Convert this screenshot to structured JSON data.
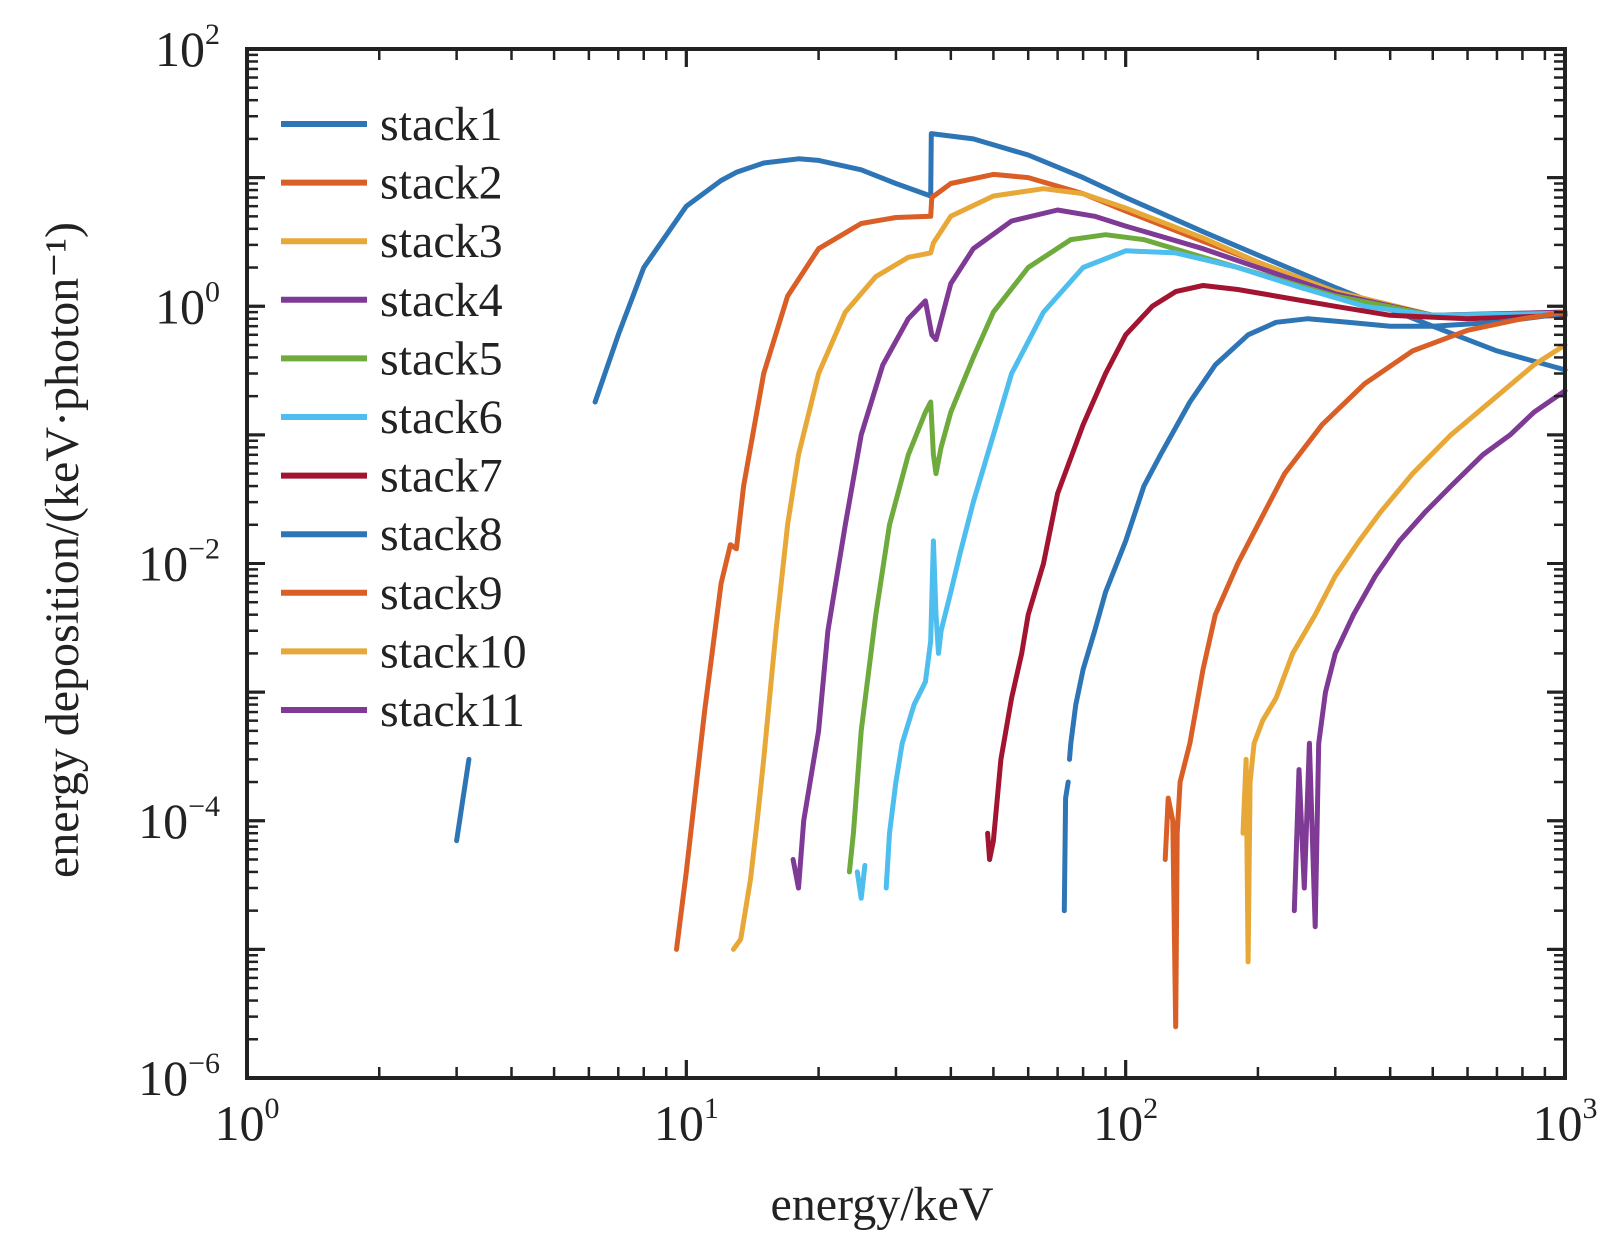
{
  "chart_data": {
    "type": "line",
    "xlabel": "energy/keV",
    "ylabel": "energy deposition/(keV·photon⁻¹)",
    "xscale": "log",
    "yscale": "log",
    "xlim": [
      1,
      1000
    ],
    "ylim": [
      1e-06,
      100
    ],
    "grid": false,
    "legend_position": "top-left",
    "x_ticks": [
      {
        "base": "10",
        "exp": "0"
      },
      {
        "base": "10",
        "exp": "1"
      },
      {
        "base": "10",
        "exp": "2"
      },
      {
        "base": "10",
        "exp": "3"
      }
    ],
    "y_ticks": [
      {
        "base": "10",
        "exp": "−6",
        "value": 1e-06
      },
      {
        "base": "10",
        "exp": "−4",
        "value": 0.0001
      },
      {
        "base": "10",
        "exp": "−2",
        "value": 0.01
      },
      {
        "base": "10",
        "exp": "0",
        "value": 1
      },
      {
        "base": "10",
        "exp": "2",
        "value": 100
      }
    ],
    "series": [
      {
        "name": "stack1",
        "color": "#2E75B6",
        "segments": [
          [
            [
              3.0,
              7e-05
            ],
            [
              3.2,
              0.0003
            ]
          ],
          [
            [
              6.2,
              0.18
            ],
            [
              7,
              0.6
            ],
            [
              8,
              2
            ],
            [
              10,
              6
            ],
            [
              12,
              9.5
            ],
            [
              13,
              11
            ],
            [
              15,
              13
            ],
            [
              18,
              14
            ],
            [
              20,
              13.6
            ],
            [
              25,
              11.5
            ],
            [
              30,
              9
            ],
            [
              36,
              7.2
            ],
            [
              36.1,
              22
            ],
            [
              45,
              20
            ],
            [
              60,
              15
            ],
            [
              80,
              10
            ],
            [
              100,
              7
            ],
            [
              150,
              3.8
            ],
            [
              200,
              2.5
            ],
            [
              300,
              1.4
            ],
            [
              500,
              0.7
            ],
            [
              700,
              0.45
            ],
            [
              1000,
              0.32
            ]
          ]
        ]
      },
      {
        "name": "stack2",
        "color": "#D95F27",
        "segments": [
          [
            [
              9.5,
              1e-05
            ],
            [
              10,
              4e-05
            ],
            [
              11,
              0.0007
            ],
            [
              12,
              0.007
            ],
            [
              12.6,
              0.014
            ],
            [
              13,
              0.013
            ],
            [
              13.5,
              0.04
            ],
            [
              15,
              0.3
            ],
            [
              17,
              1.2
            ],
            [
              20,
              2.8
            ],
            [
              25,
              4.4
            ],
            [
              30,
              4.9
            ],
            [
              36,
              5.0
            ],
            [
              36.2,
              7
            ],
            [
              40,
              9
            ],
            [
              50,
              10.6
            ],
            [
              60,
              10
            ],
            [
              80,
              7.5
            ],
            [
              100,
              5.5
            ],
            [
              150,
              3.2
            ],
            [
              200,
              2.2
            ],
            [
              300,
              1.3
            ],
            [
              500,
              0.85
            ],
            [
              1000,
              0.85
            ]
          ]
        ]
      },
      {
        "name": "stack3",
        "color": "#E8A838",
        "segments": [
          [
            [
              12.8,
              1e-05
            ],
            [
              13.3,
              1.2e-05
            ],
            [
              14,
              3.5e-05
            ],
            [
              14.5,
              0.0001
            ],
            [
              15,
              0.0003
            ],
            [
              16,
              0.003
            ],
            [
              17,
              0.02
            ],
            [
              18,
              0.07
            ],
            [
              20,
              0.3
            ],
            [
              23,
              0.9
            ],
            [
              27,
              1.7
            ],
            [
              32,
              2.4
            ],
            [
              36,
              2.6
            ],
            [
              36.5,
              3.1
            ],
            [
              40,
              5
            ],
            [
              50,
              7.2
            ],
            [
              65,
              8.2
            ],
            [
              80,
              7.5
            ],
            [
              100,
              5.8
            ],
            [
              150,
              3.4
            ],
            [
              200,
              2.2
            ],
            [
              300,
              1.3
            ],
            [
              500,
              0.85
            ],
            [
              1000,
              0.9
            ]
          ]
        ]
      },
      {
        "name": "stack4",
        "color": "#7E3A94",
        "segments": [
          [
            [
              17.5,
              5e-05
            ],
            [
              18,
              3e-05
            ],
            [
              18.5,
              0.0001
            ],
            [
              20,
              0.0005
            ],
            [
              21,
              0.003
            ],
            [
              23,
              0.02
            ],
            [
              25,
              0.1
            ],
            [
              28,
              0.35
            ],
            [
              32,
              0.8
            ],
            [
              35,
              1.1
            ],
            [
              36.2,
              0.6
            ],
            [
              37,
              0.55
            ],
            [
              40,
              1.5
            ],
            [
              45,
              2.8
            ],
            [
              55,
              4.6
            ],
            [
              70,
              5.6
            ],
            [
              85,
              5.0
            ],
            [
              100,
              4.2
            ],
            [
              150,
              2.8
            ],
            [
              200,
              2.0
            ],
            [
              300,
              1.25
            ],
            [
              500,
              0.85
            ],
            [
              1000,
              0.9
            ]
          ]
        ]
      },
      {
        "name": "stack5",
        "color": "#6FAA3C",
        "segments": [
          [
            [
              23.5,
              4e-05
            ],
            [
              24,
              8e-05
            ],
            [
              25,
              0.0005
            ],
            [
              27,
              0.004
            ],
            [
              29,
              0.02
            ],
            [
              32,
              0.07
            ],
            [
              35,
              0.15
            ],
            [
              36,
              0.18
            ],
            [
              36.5,
              0.07
            ],
            [
              37,
              0.05
            ],
            [
              38,
              0.08
            ],
            [
              40,
              0.15
            ],
            [
              45,
              0.4
            ],
            [
              50,
              0.9
            ],
            [
              60,
              2.0
            ],
            [
              75,
              3.3
            ],
            [
              90,
              3.6
            ],
            [
              110,
              3.3
            ],
            [
              150,
              2.4
            ],
            [
              200,
              1.8
            ],
            [
              300,
              1.2
            ],
            [
              500,
              0.85
            ],
            [
              1000,
              0.88
            ]
          ]
        ]
      },
      {
        "name": "stack6",
        "color": "#4DBEEE",
        "segments": [
          [
            [
              24.5,
              4e-05
            ],
            [
              25,
              2.5e-05
            ],
            [
              25.5,
              4.5e-05
            ]
          ],
          [
            [
              28.5,
              3e-05
            ],
            [
              29,
              8e-05
            ],
            [
              30,
              0.0002
            ],
            [
              31,
              0.0004
            ],
            [
              33,
              0.0008
            ],
            [
              35,
              0.0012
            ],
            [
              36,
              0.0025
            ],
            [
              36.5,
              0.015
            ],
            [
              37,
              0.004
            ],
            [
              37.5,
              0.002
            ],
            [
              38,
              0.003
            ],
            [
              40,
              0.006
            ],
            [
              42,
              0.012
            ],
            [
              45,
              0.03
            ],
            [
              50,
              0.1
            ],
            [
              55,
              0.3
            ],
            [
              65,
              0.9
            ],
            [
              80,
              2.0
            ],
            [
              100,
              2.7
            ],
            [
              130,
              2.6
            ],
            [
              180,
              2.0
            ],
            [
              250,
              1.4
            ],
            [
              350,
              1.0
            ],
            [
              500,
              0.85
            ],
            [
              1000,
              0.88
            ]
          ]
        ]
      },
      {
        "name": "stack7",
        "color": "#A2142F",
        "segments": [
          [
            [
              48.5,
              8e-05
            ],
            [
              49,
              5e-05
            ],
            [
              50,
              7e-05
            ],
            [
              52,
              0.0003
            ],
            [
              55,
              0.0009
            ],
            [
              58,
              0.002
            ],
            [
              60,
              0.004
            ],
            [
              65,
              0.01
            ],
            [
              70,
              0.035
            ],
            [
              80,
              0.12
            ],
            [
              90,
              0.3
            ],
            [
              100,
              0.6
            ],
            [
              115,
              1.0
            ],
            [
              130,
              1.3
            ],
            [
              150,
              1.45
            ],
            [
              180,
              1.35
            ],
            [
              220,
              1.2
            ],
            [
              300,
              1.0
            ],
            [
              400,
              0.85
            ],
            [
              600,
              0.8
            ],
            [
              1000,
              0.85
            ]
          ]
        ]
      },
      {
        "name": "stack8",
        "color": "#2E75B6",
        "segments": [
          [
            [
              72.5,
              2e-05
            ],
            [
              73,
              0.00015
            ],
            [
              74,
              0.0002
            ]
          ],
          [
            [
              74.5,
              0.0003
            ],
            [
              75,
              0.0004
            ],
            [
              77,
              0.0008
            ],
            [
              80,
              0.0015
            ],
            [
              85,
              0.003
            ],
            [
              90,
              0.006
            ],
            [
              100,
              0.015
            ],
            [
              110,
              0.04
            ],
            [
              120,
              0.07
            ],
            [
              140,
              0.18
            ],
            [
              160,
              0.35
            ],
            [
              190,
              0.6
            ],
            [
              220,
              0.75
            ],
            [
              260,
              0.8
            ],
            [
              320,
              0.75
            ],
            [
              400,
              0.7
            ],
            [
              500,
              0.7
            ],
            [
              700,
              0.75
            ],
            [
              1000,
              0.88
            ]
          ]
        ]
      },
      {
        "name": "stack9",
        "color": "#D95F27",
        "segments": [
          [
            [
              123,
              5e-05
            ],
            [
              125,
              0.00015
            ],
            [
              128,
              0.0001
            ],
            [
              130,
              2.5e-06
            ],
            [
              131,
              8e-05
            ],
            [
              133,
              0.0002
            ],
            [
              140,
              0.0004
            ],
            [
              150,
              0.0015
            ],
            [
              160,
              0.004
            ],
            [
              180,
              0.01
            ],
            [
              200,
              0.02
            ],
            [
              230,
              0.05
            ],
            [
              280,
              0.12
            ],
            [
              350,
              0.25
            ],
            [
              450,
              0.45
            ],
            [
              600,
              0.65
            ],
            [
              800,
              0.8
            ],
            [
              1000,
              0.9
            ]
          ]
        ]
      },
      {
        "name": "stack10",
        "color": "#E8A838",
        "segments": [
          [
            [
              185,
              8e-05
            ],
            [
              188,
              0.0003
            ],
            [
              190,
              8e-06
            ],
            [
              192,
              0.0002
            ],
            [
              196,
              0.0004
            ],
            [
              205,
              0.0006
            ],
            [
              220,
              0.0009
            ],
            [
              240,
              0.002
            ],
            [
              270,
              0.004
            ],
            [
              300,
              0.008
            ],
            [
              340,
              0.015
            ],
            [
              380,
              0.025
            ],
            [
              450,
              0.05
            ],
            [
              550,
              0.1
            ],
            [
              700,
              0.2
            ],
            [
              850,
              0.35
            ],
            [
              1000,
              0.5
            ]
          ]
        ]
      },
      {
        "name": "stack11",
        "color": "#7E3A94",
        "segments": [
          [
            [
              242,
              2e-05
            ],
            [
              248,
              0.00025
            ],
            [
              255,
              3e-05
            ],
            [
              262,
              0.0004
            ],
            [
              270,
              1.5e-05
            ],
            [
              275,
              0.0004
            ],
            [
              285,
              0.001
            ],
            [
              300,
              0.002
            ],
            [
              330,
              0.004
            ],
            [
              370,
              0.008
            ],
            [
              420,
              0.015
            ],
            [
              480,
              0.025
            ],
            [
              550,
              0.04
            ],
            [
              650,
              0.07
            ],
            [
              750,
              0.1
            ],
            [
              850,
              0.15
            ],
            [
              1000,
              0.22
            ]
          ]
        ]
      }
    ]
  }
}
